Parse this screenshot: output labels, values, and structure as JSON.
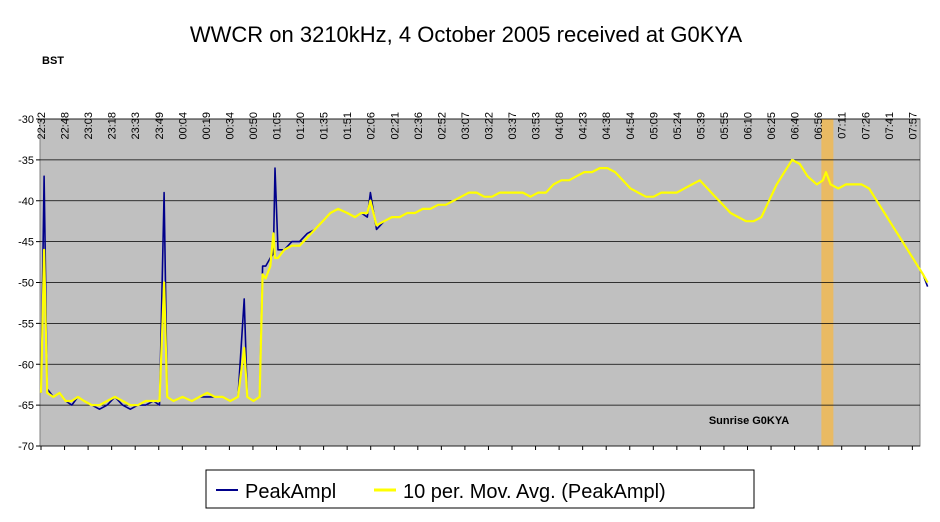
{
  "chart_data": {
    "type": "line",
    "title": "WWCR on 3210kHz, 4 October 2005 received at G0KYA",
    "xlabel": "BST",
    "ylabel": "",
    "ylim": [
      -70,
      -30
    ],
    "yticks": [
      -30,
      -35,
      -40,
      -45,
      -50,
      -55,
      -60,
      -65,
      -70
    ],
    "x_tick_labels": [
      "22:32",
      "22:48",
      "23:03",
      "23:18",
      "23:33",
      "23:49",
      "00:04",
      "00:19",
      "00:34",
      "00:50",
      "01:05",
      "01:20",
      "01:35",
      "01:51",
      "02:06",
      "02:21",
      "02:36",
      "02:52",
      "03:07",
      "03:22",
      "03:37",
      "03:53",
      "04:08",
      "04:23",
      "04:38",
      "04:54",
      "05:09",
      "05:24",
      "05:39",
      "05:55",
      "06:10",
      "06:25",
      "06:40",
      "06:56",
      "07:11",
      "07:26",
      "07:41",
      "07:57"
    ],
    "grid": true,
    "legend_position": "bottom",
    "annotation": {
      "text": "Sunrise G0KYA",
      "band_from": "06:59",
      "band_to": "07:02"
    },
    "series": [
      {
        "name": "PeakAmpl",
        "color": "#00008b",
        "values": [
          [
            "22:32",
            -63.5
          ],
          [
            "22:34",
            -37
          ],
          [
            "22:36",
            -63
          ],
          [
            "22:40",
            -64
          ],
          [
            "22:44",
            -63.5
          ],
          [
            "22:48",
            -64.5
          ],
          [
            "22:52",
            -65
          ],
          [
            "22:56",
            -64
          ],
          [
            "23:00",
            -64.5
          ],
          [
            "23:05",
            -65
          ],
          [
            "23:10",
            -65.5
          ],
          [
            "23:15",
            -65
          ],
          [
            "23:20",
            -64
          ],
          [
            "23:25",
            -65
          ],
          [
            "23:30",
            -65.5
          ],
          [
            "23:35",
            -65
          ],
          [
            "23:40",
            -65
          ],
          [
            "23:45",
            -64.5
          ],
          [
            "23:49",
            -65
          ],
          [
            "23:52",
            -39
          ],
          [
            "23:54",
            -64
          ],
          [
            "23:58",
            -64.5
          ],
          [
            "00:04",
            -64
          ],
          [
            "00:10",
            -64.5
          ],
          [
            "00:15",
            -64
          ],
          [
            "00:20",
            -64
          ],
          [
            "00:25",
            -64
          ],
          [
            "00:30",
            -64
          ],
          [
            "00:35",
            -64.5
          ],
          [
            "00:40",
            -64
          ],
          [
            "00:44",
            -52
          ],
          [
            "00:46",
            -64
          ],
          [
            "00:50",
            -64.5
          ],
          [
            "00:54",
            -64
          ],
          [
            "00:56",
            -48
          ],
          [
            "00:58",
            -48
          ],
          [
            "01:01",
            -47
          ],
          [
            "01:03",
            -46.5
          ],
          [
            "01:04",
            -36
          ],
          [
            "01:06",
            -46
          ],
          [
            "01:10",
            -46
          ],
          [
            "01:15",
            -45
          ],
          [
            "01:20",
            -45
          ],
          [
            "01:25",
            -44
          ],
          [
            "01:30",
            -43.5
          ],
          [
            "01:35",
            -42.5
          ],
          [
            "01:40",
            -41.5
          ],
          [
            "01:45",
            -41
          ],
          [
            "01:51",
            -41.5
          ],
          [
            "01:56",
            -42
          ],
          [
            "02:00",
            -41.5
          ],
          [
            "02:04",
            -42
          ],
          [
            "02:06",
            -39
          ],
          [
            "02:10",
            -43.5
          ],
          [
            "02:15",
            -42.5
          ],
          [
            "02:20",
            -42
          ],
          [
            "02:25",
            -42
          ],
          [
            "02:30",
            -41.5
          ],
          [
            "02:35",
            -41.5
          ],
          [
            "02:40",
            -41
          ],
          [
            "02:45",
            -41
          ],
          [
            "02:50",
            -40.5
          ],
          [
            "02:55",
            -40.5
          ],
          [
            "03:00",
            -40
          ],
          [
            "03:05",
            -39.5
          ],
          [
            "03:10",
            -39
          ],
          [
            "03:15",
            -39
          ],
          [
            "03:20",
            -39.5
          ],
          [
            "03:25",
            -39.5
          ],
          [
            "03:30",
            -39
          ],
          [
            "03:35",
            -39
          ],
          [
            "03:40",
            -39
          ],
          [
            "03:45",
            -39
          ],
          [
            "03:50",
            -39.5
          ],
          [
            "03:55",
            -39
          ],
          [
            "04:00",
            -39
          ],
          [
            "04:05",
            -38
          ],
          [
            "04:10",
            -37.5
          ],
          [
            "04:15",
            -37.5
          ],
          [
            "04:20",
            -37
          ],
          [
            "04:25",
            -36.5
          ],
          [
            "04:30",
            -36.5
          ],
          [
            "04:35",
            -36
          ],
          [
            "04:40",
            -36
          ],
          [
            "04:45",
            -36.5
          ],
          [
            "04:50",
            -37.5
          ],
          [
            "04:55",
            -38.5
          ],
          [
            "05:00",
            -39
          ],
          [
            "05:05",
            -39.5
          ],
          [
            "05:10",
            -39.5
          ],
          [
            "05:15",
            -39
          ],
          [
            "05:20",
            -39
          ],
          [
            "05:25",
            -39
          ],
          [
            "05:30",
            -38.5
          ],
          [
            "05:35",
            -38
          ],
          [
            "05:40",
            -37.5
          ],
          [
            "05:45",
            -38.5
          ],
          [
            "05:50",
            -39.5
          ],
          [
            "05:55",
            -40.5
          ],
          [
            "06:00",
            -41.5
          ],
          [
            "06:05",
            -42
          ],
          [
            "06:10",
            -42.5
          ],
          [
            "06:15",
            -42.5
          ],
          [
            "06:20",
            -42
          ],
          [
            "06:25",
            -40
          ],
          [
            "06:30",
            -38
          ],
          [
            "06:35",
            -36.5
          ],
          [
            "06:40",
            -35
          ],
          [
            "06:45",
            -35.5
          ],
          [
            "06:50",
            -37
          ],
          [
            "06:56",
            -38
          ],
          [
            "07:00",
            -37.5
          ],
          [
            "07:02",
            -36.5
          ],
          [
            "07:05",
            -38
          ],
          [
            "07:10",
            -38.5
          ],
          [
            "07:15",
            -38
          ],
          [
            "07:20",
            -38
          ],
          [
            "07:25",
            -38
          ],
          [
            "07:30",
            -38.5
          ],
          [
            "07:35",
            -40
          ],
          [
            "07:40",
            -41.5
          ],
          [
            "07:45",
            -43
          ],
          [
            "07:50",
            -44.5
          ],
          [
            "07:55",
            -46
          ],
          [
            "08:00",
            -47.5
          ],
          [
            "08:05",
            -49
          ],
          [
            "08:08",
            -50.5
          ]
        ]
      },
      {
        "name": "10 per. Mov. Avg. (PeakAmpl)",
        "color": "#ffff00",
        "values": [
          [
            "22:32",
            -63.5
          ],
          [
            "22:34",
            -46
          ],
          [
            "22:36",
            -63.5
          ],
          [
            "22:40",
            -64
          ],
          [
            "22:44",
            -63.5
          ],
          [
            "22:48",
            -64.5
          ],
          [
            "22:52",
            -64.5
          ],
          [
            "22:56",
            -64
          ],
          [
            "23:00",
            -64.5
          ],
          [
            "23:05",
            -65
          ],
          [
            "23:10",
            -65
          ],
          [
            "23:15",
            -64.5
          ],
          [
            "23:20",
            -64
          ],
          [
            "23:25",
            -64.5
          ],
          [
            "23:30",
            -65
          ],
          [
            "23:35",
            -65
          ],
          [
            "23:40",
            -64.5
          ],
          [
            "23:45",
            -64.5
          ],
          [
            "23:49",
            -64.5
          ],
          [
            "23:52",
            -50
          ],
          [
            "23:54",
            -64
          ],
          [
            "23:58",
            -64.5
          ],
          [
            "00:04",
            -64
          ],
          [
            "00:10",
            -64.5
          ],
          [
            "00:15",
            -64
          ],
          [
            "00:20",
            -63.5
          ],
          [
            "00:25",
            -64
          ],
          [
            "00:30",
            -64
          ],
          [
            "00:35",
            -64.5
          ],
          [
            "00:40",
            -64
          ],
          [
            "00:44",
            -58
          ],
          [
            "00:46",
            -64
          ],
          [
            "00:50",
            -64.5
          ],
          [
            "00:54",
            -64
          ],
          [
            "00:56",
            -49
          ],
          [
            "00:58",
            -49.5
          ],
          [
            "01:01",
            -48
          ],
          [
            "01:03",
            -44
          ],
          [
            "01:04",
            -47
          ],
          [
            "01:06",
            -47
          ],
          [
            "01:10",
            -46
          ],
          [
            "01:15",
            -45.5
          ],
          [
            "01:20",
            -45.5
          ],
          [
            "01:25",
            -44.5
          ],
          [
            "01:30",
            -43.5
          ],
          [
            "01:35",
            -42.5
          ],
          [
            "01:40",
            -41.5
          ],
          [
            "01:45",
            -41
          ],
          [
            "01:51",
            -41.5
          ],
          [
            "01:56",
            -42
          ],
          [
            "02:00",
            -41.5
          ],
          [
            "02:04",
            -41.5
          ],
          [
            "02:06",
            -40
          ],
          [
            "02:10",
            -43
          ],
          [
            "02:15",
            -42.5
          ],
          [
            "02:20",
            -42
          ],
          [
            "02:25",
            -42
          ],
          [
            "02:30",
            -41.5
          ],
          [
            "02:35",
            -41.5
          ],
          [
            "02:40",
            -41
          ],
          [
            "02:45",
            -41
          ],
          [
            "02:50",
            -40.5
          ],
          [
            "02:55",
            -40.5
          ],
          [
            "03:00",
            -40
          ],
          [
            "03:05",
            -39.5
          ],
          [
            "03:10",
            -39
          ],
          [
            "03:15",
            -39
          ],
          [
            "03:20",
            -39.5
          ],
          [
            "03:25",
            -39.5
          ],
          [
            "03:30",
            -39
          ],
          [
            "03:35",
            -39
          ],
          [
            "03:40",
            -39
          ],
          [
            "03:45",
            -39
          ],
          [
            "03:50",
            -39.5
          ],
          [
            "03:55",
            -39
          ],
          [
            "04:00",
            -39
          ],
          [
            "04:05",
            -38
          ],
          [
            "04:10",
            -37.5
          ],
          [
            "04:15",
            -37.5
          ],
          [
            "04:20",
            -37
          ],
          [
            "04:25",
            -36.5
          ],
          [
            "04:30",
            -36.5
          ],
          [
            "04:35",
            -36
          ],
          [
            "04:40",
            -36
          ],
          [
            "04:45",
            -36.5
          ],
          [
            "04:50",
            -37.5
          ],
          [
            "04:55",
            -38.5
          ],
          [
            "05:00",
            -39
          ],
          [
            "05:05",
            -39.5
          ],
          [
            "05:10",
            -39.5
          ],
          [
            "05:15",
            -39
          ],
          [
            "05:20",
            -39
          ],
          [
            "05:25",
            -39
          ],
          [
            "05:30",
            -38.5
          ],
          [
            "05:35",
            -38
          ],
          [
            "05:40",
            -37.5
          ],
          [
            "05:45",
            -38.5
          ],
          [
            "05:50",
            -39.5
          ],
          [
            "05:55",
            -40.5
          ],
          [
            "06:00",
            -41.5
          ],
          [
            "06:05",
            -42
          ],
          [
            "06:10",
            -42.5
          ],
          [
            "06:15",
            -42.5
          ],
          [
            "06:20",
            -42
          ],
          [
            "06:25",
            -40
          ],
          [
            "06:30",
            -38
          ],
          [
            "06:35",
            -36.5
          ],
          [
            "06:40",
            -35
          ],
          [
            "06:45",
            -35.5
          ],
          [
            "06:50",
            -37
          ],
          [
            "06:56",
            -38
          ],
          [
            "07:00",
            -37.5
          ],
          [
            "07:02",
            -36.5
          ],
          [
            "07:05",
            -38
          ],
          [
            "07:10",
            -38.5
          ],
          [
            "07:15",
            -38
          ],
          [
            "07:20",
            -38
          ],
          [
            "07:25",
            -38
          ],
          [
            "07:30",
            -38.5
          ],
          [
            "07:35",
            -40
          ],
          [
            "07:40",
            -41.5
          ],
          [
            "07:45",
            -43
          ],
          [
            "07:50",
            -44.5
          ],
          [
            "07:55",
            -46
          ],
          [
            "08:00",
            -47.5
          ],
          [
            "08:05",
            -49
          ],
          [
            "08:08",
            -50
          ]
        ]
      }
    ]
  }
}
